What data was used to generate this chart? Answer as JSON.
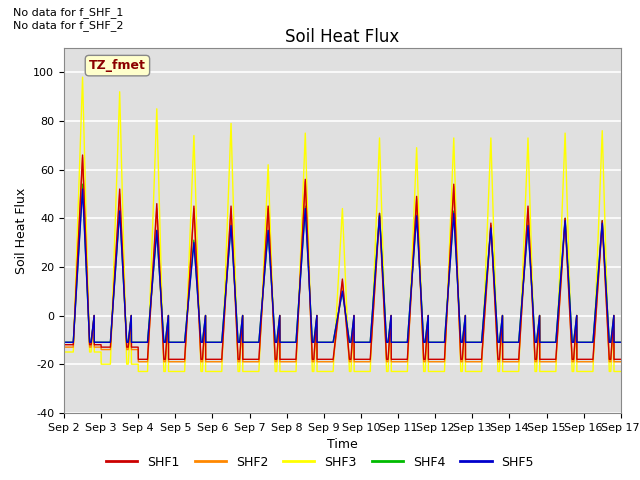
{
  "title": "Soil Heat Flux",
  "ylabel": "Soil Heat Flux",
  "xlabel": "Time",
  "ylim": [
    -40,
    110
  ],
  "yticks": [
    -40,
    -20,
    0,
    20,
    40,
    60,
    80,
    100
  ],
  "xtick_labels": [
    "Sep 2",
    "Sep 3",
    "Sep 4",
    "Sep 5",
    "Sep 6",
    "Sep 7",
    "Sep 8",
    "Sep 9",
    "Sep 10",
    "Sep 11",
    "Sep 12",
    "Sep 13",
    "Sep 14",
    "Sep 15",
    "Sep 16",
    "Sep 17"
  ],
  "series_colors": {
    "SHF1": "#cc0000",
    "SHF2": "#ff8800",
    "SHF3": "#ffff00",
    "SHF4": "#00bb00",
    "SHF5": "#0000cc"
  },
  "series_names": [
    "SHF1",
    "SHF2",
    "SHF3",
    "SHF4",
    "SHF5"
  ],
  "annotation_top_left": "No data for f_SHF_1\nNo data for f_SHF_2",
  "annotation_box": "TZ_fmet",
  "background_color": "#ffffff",
  "plot_bg_color": "#e0e0e0",
  "grid_color": "#ffffff",
  "peaks": [
    [
      66,
      65,
      98,
      54,
      52
    ],
    [
      52,
      50,
      92,
      44,
      43
    ],
    [
      46,
      44,
      85,
      35,
      35
    ],
    [
      45,
      44,
      74,
      31,
      30
    ],
    [
      45,
      44,
      79,
      38,
      37
    ],
    [
      45,
      44,
      62,
      35,
      35
    ],
    [
      56,
      55,
      75,
      45,
      44
    ],
    [
      15,
      14,
      44,
      10,
      10
    ],
    [
      42,
      41,
      73,
      42,
      41
    ],
    [
      49,
      48,
      69,
      42,
      41
    ],
    [
      54,
      53,
      73,
      43,
      42
    ],
    [
      38,
      37,
      73,
      37,
      36
    ],
    [
      45,
      44,
      73,
      38,
      37
    ],
    [
      40,
      39,
      75,
      40,
      39
    ],
    [
      39,
      38,
      76,
      39,
      38
    ]
  ],
  "night_vals": {
    "SHF1": [
      -12,
      -13,
      -18,
      -18,
      -18,
      -18,
      -18,
      -18,
      -18,
      -18,
      -18,
      -18,
      -18,
      -18,
      -18
    ],
    "SHF2": [
      -13,
      -14,
      -19,
      -19,
      -19,
      -19,
      -19,
      -19,
      -19,
      -19,
      -19,
      -19,
      -19,
      -19,
      -19
    ],
    "SHF3": [
      -15,
      -20,
      -23,
      -23,
      -23,
      -23,
      -23,
      -23,
      -23,
      -23,
      -23,
      -23,
      -23,
      -23,
      -23
    ],
    "SHF4": [
      -11,
      -11,
      -11,
      -11,
      -11,
      -11,
      -11,
      -11,
      -11,
      -11,
      -11,
      -11,
      -11,
      -11,
      -11
    ],
    "SHF5": [
      -11,
      -11,
      -11,
      -11,
      -11,
      -11,
      -11,
      -11,
      -11,
      -11,
      -11,
      -11,
      -11,
      -11,
      -11
    ]
  }
}
